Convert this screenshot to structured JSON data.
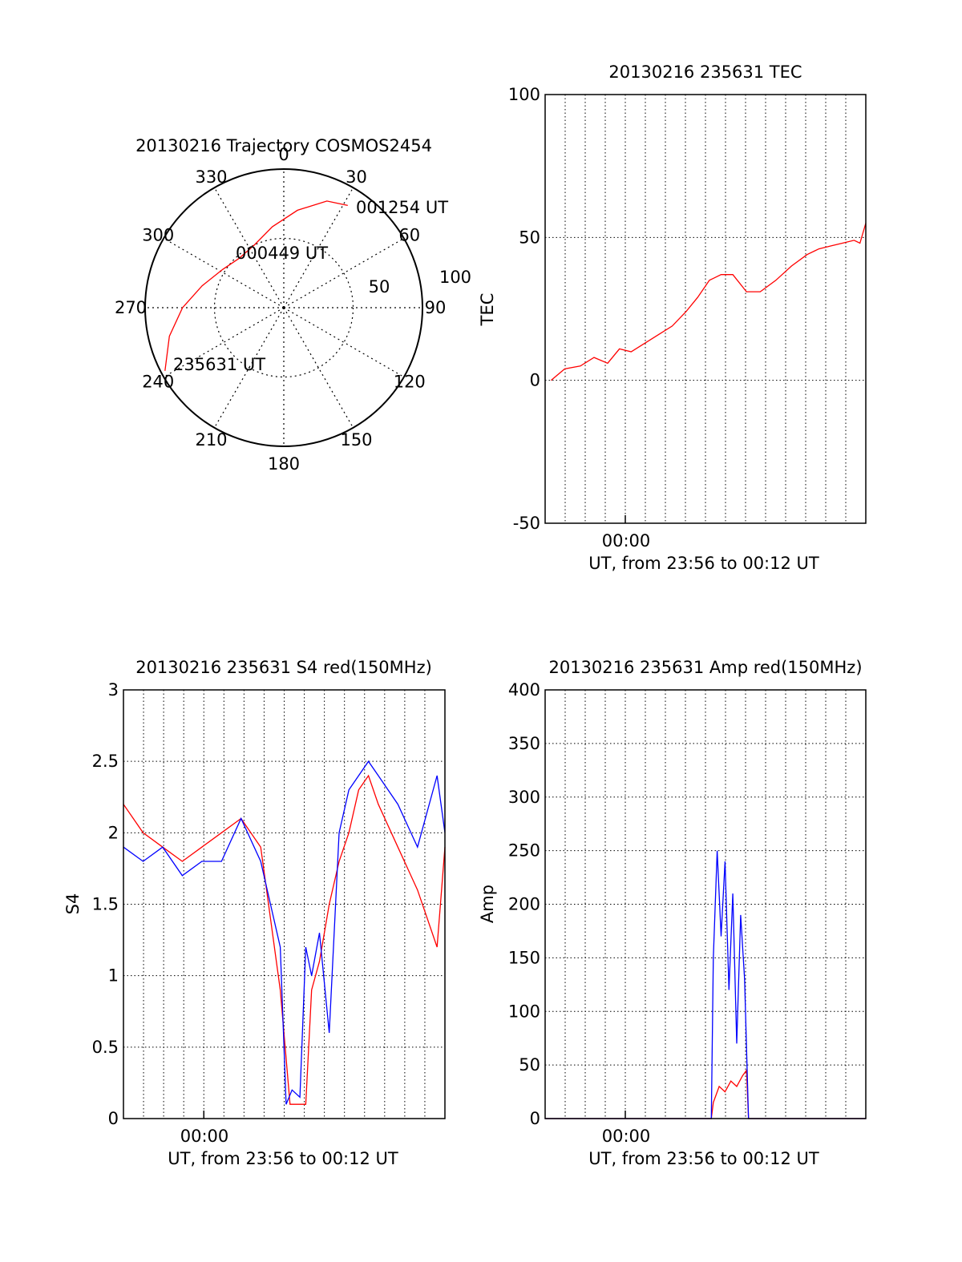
{
  "colors": {
    "red": "#ff0000",
    "blue": "#0000ff",
    "axis": "#000000",
    "grid": "#000000"
  },
  "chart_data": [
    {
      "type": "polar",
      "title": "20130216 Trajectory COSMOS2454",
      "azimuth_labels": [
        "0",
        "30",
        "60",
        "90",
        "120",
        "150",
        "180",
        "210",
        "240",
        "270",
        "300",
        "330"
      ],
      "radial_labels": [
        "50",
        "100"
      ],
      "rlim": [
        0,
        100
      ],
      "grid": true,
      "series": [
        {
          "color": "#ff0000",
          "points": [
            {
              "az": 242,
              "el": 3
            },
            {
              "az": 256,
              "el": 15
            },
            {
              "az": 270,
              "el": 27
            },
            {
              "az": 285,
              "el": 39
            },
            {
              "az": 302,
              "el": 48
            },
            {
              "az": 318,
              "el": 52
            },
            {
              "az": 335,
              "el": 50
            },
            {
              "az": 352,
              "el": 41
            },
            {
              "az": 8,
              "el": 29
            },
            {
              "az": 22,
              "el": 17
            },
            {
              "az": 32,
              "el": 13
            }
          ]
        }
      ],
      "annotations": [
        "235631 UT",
        "000449 UT",
        "001254 UT"
      ]
    },
    {
      "type": "line",
      "title": "20130216 235631 TEC",
      "xlabel": "UT, from 23:56 to 00:12 UT",
      "ylabel": "TEC",
      "x_tick_label": "00:00",
      "xlim": [
        0,
        16.4
      ],
      "ylim": [
        -50,
        100
      ],
      "yticks": [
        -50,
        0,
        50,
        100
      ],
      "grid": true,
      "series": [
        {
          "color": "#ff0000",
          "x": [
            0.3,
            1.0,
            1.8,
            2.5,
            3.2,
            3.8,
            4.4,
            5.1,
            5.8,
            6.5,
            7.2,
            7.8,
            8.4,
            9.0,
            9.6,
            10.3,
            11.0,
            11.8,
            12.6,
            13.4,
            14.0,
            14.6,
            15.2,
            15.8,
            16.1,
            16.4
          ],
          "y": [
            0,
            4,
            5,
            8,
            6,
            11,
            10,
            13,
            16,
            19,
            24,
            29,
            35,
            37,
            37,
            31,
            31,
            35,
            40,
            44,
            46,
            47,
            48,
            49,
            48,
            55
          ]
        }
      ]
    },
    {
      "type": "line",
      "title": "20130216 235631 S4 red(150MHz)",
      "xlabel": "UT, from 23:56 to 00:12 UT",
      "ylabel": "S4",
      "x_tick_label": "00:00",
      "xlim": [
        0,
        16.4
      ],
      "ylim": [
        0,
        3
      ],
      "yticks": [
        0,
        0.5,
        1,
        1.5,
        2,
        2.5,
        3
      ],
      "grid": true,
      "series": [
        {
          "color": "#ff0000",
          "x": [
            0,
            1,
            2,
            3,
            4,
            5,
            6,
            7,
            7.5,
            8,
            8.5,
            9,
            9.3,
            9.6,
            10,
            10.5,
            11,
            11.5,
            12,
            12.5,
            13,
            14,
            15,
            16,
            16.4
          ],
          "y": [
            2.2,
            2.0,
            1.9,
            1.8,
            1.9,
            2.0,
            2.1,
            1.9,
            1.4,
            0.9,
            0.1,
            0.1,
            0.1,
            0.9,
            1.1,
            1.5,
            1.8,
            2.0,
            2.3,
            2.4,
            2.2,
            1.9,
            1.6,
            1.2,
            1.9
          ]
        },
        {
          "color": "#0000ff",
          "x": [
            0,
            1,
            2,
            3,
            4,
            5,
            6,
            7,
            7.5,
            8,
            8.3,
            8.6,
            9,
            9.3,
            9.6,
            10,
            10.5,
            11,
            11.5,
            12,
            12.5,
            13,
            14,
            15,
            16,
            16.4
          ],
          "y": [
            1.9,
            1.8,
            1.9,
            1.7,
            1.8,
            1.8,
            2.1,
            1.8,
            1.5,
            1.2,
            0.1,
            0.2,
            0.15,
            1.2,
            1.0,
            1.3,
            0.6,
            2.0,
            2.3,
            2.4,
            2.5,
            2.4,
            2.2,
            1.9,
            2.4,
            2.0
          ]
        }
      ]
    },
    {
      "type": "line",
      "title": "20130216 235631 Amp red(150MHz)",
      "xlabel": "UT, from 23:56 to 00:12 UT",
      "ylabel": "Amp",
      "x_tick_label": "00:00",
      "xlim": [
        0,
        16.4
      ],
      "ylim": [
        0,
        400
      ],
      "yticks": [
        0,
        50,
        100,
        150,
        200,
        250,
        300,
        350,
        400
      ],
      "grid": true,
      "series": [
        {
          "color": "#ff0000",
          "x": [
            0,
            8.5,
            8.6,
            8.9,
            9.2,
            9.5,
            9.8,
            10.1,
            10.3,
            10.4,
            16.4
          ],
          "y": [
            0,
            0,
            15,
            30,
            25,
            35,
            30,
            40,
            45,
            0,
            0
          ]
        },
        {
          "color": "#0000ff",
          "x": [
            0,
            8.5,
            8.6,
            8.8,
            9.0,
            9.2,
            9.4,
            9.6,
            9.8,
            10.0,
            10.2,
            10.4,
            16.4
          ],
          "y": [
            0,
            0,
            150,
            250,
            170,
            240,
            120,
            210,
            70,
            190,
            130,
            0,
            0
          ]
        }
      ]
    }
  ]
}
